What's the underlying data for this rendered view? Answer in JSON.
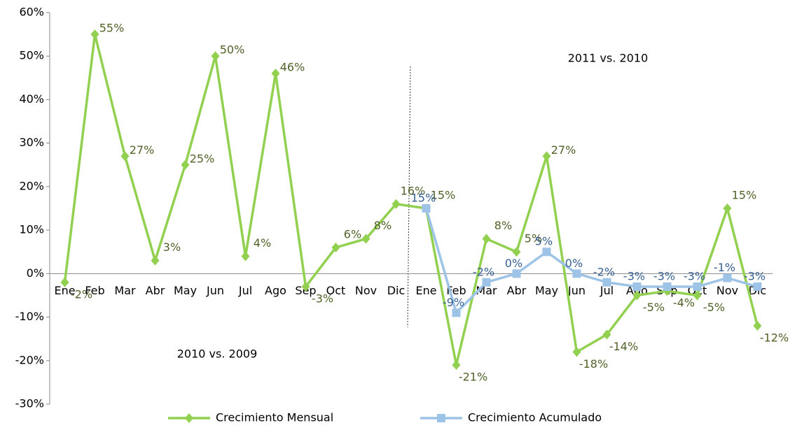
{
  "chart_data": {
    "type": "line",
    "categories": [
      "Ene",
      "Feb",
      "Mar",
      "Abr",
      "May",
      "Jun",
      "Jul",
      "Ago",
      "Sep",
      "Oct",
      "Nov",
      "Dic",
      "Ene",
      "Feb",
      "Mar",
      "Abr",
      "May",
      "Jun",
      "Jul",
      "Ago",
      "Sep",
      "Oct",
      "Nov",
      "Dic"
    ],
    "series": [
      {
        "name": "Crecimiento Mensual",
        "color": "#92d050",
        "label_color": "#4f6228",
        "marker": "diamond",
        "values": [
          -2,
          55,
          27,
          3,
          25,
          50,
          4,
          46,
          -3,
          6,
          8,
          16,
          15,
          -21,
          8,
          5,
          27,
          -18,
          -14,
          -5,
          -4,
          -5,
          15,
          -12
        ],
        "value_labels": [
          "-2%",
          "55%",
          "27%",
          "3%",
          "25%",
          "50%",
          "4%",
          "46%",
          "-3%",
          "6%",
          "8%",
          "16%",
          "15%",
          "-21%",
          "8%",
          "5%",
          "27%",
          "-18%",
          "-14%",
          "-5%",
          "-4%",
          "-5%",
          "15%",
          "-12%"
        ]
      },
      {
        "name": "Crecimiento Acumulado",
        "color": "#9dc3e6",
        "label_color": "#376092",
        "marker": "square",
        "values": [
          null,
          null,
          null,
          null,
          null,
          null,
          null,
          null,
          null,
          null,
          null,
          null,
          15,
          -9,
          -2,
          0,
          5,
          0,
          -2,
          -3,
          -3,
          -3,
          -1,
          -3
        ],
        "value_labels": [
          null,
          null,
          null,
          null,
          null,
          null,
          null,
          null,
          null,
          null,
          null,
          null,
          "15%",
          "-9%",
          "-2%",
          "0%",
          "5%",
          "0%",
          "-2%",
          "-3%",
          "-3%",
          "-3%",
          "-1%",
          "-3%"
        ]
      }
    ],
    "ylim": [
      -30,
      60
    ],
    "yticks": [
      {
        "value": -30,
        "label": "-30%"
      },
      {
        "value": -20,
        "label": "-20%"
      },
      {
        "value": -10,
        "label": "-10%"
      },
      {
        "value": 0,
        "label": "0%"
      },
      {
        "value": 10,
        "label": "10%"
      },
      {
        "value": 20,
        "label": "20%"
      },
      {
        "value": 30,
        "label": "30%"
      },
      {
        "value": 40,
        "label": "40%"
      },
      {
        "value": 50,
        "label": "50%"
      },
      {
        "value": 60,
        "label": "60%"
      }
    ],
    "annotations": [
      "2010 vs. 2009",
      "2011 vs. 2010"
    ],
    "legend": "bottom"
  }
}
